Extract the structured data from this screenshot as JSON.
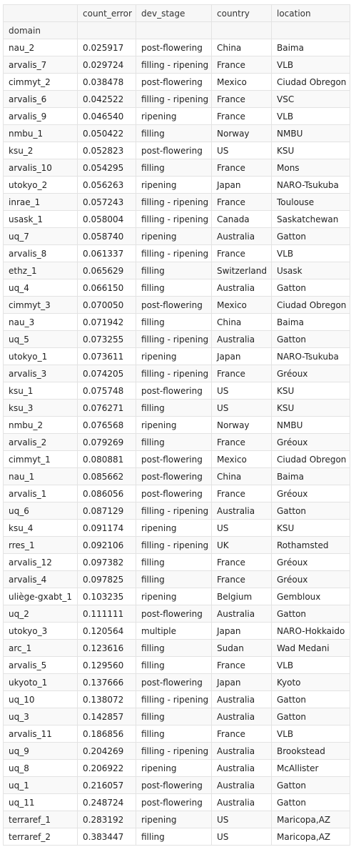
{
  "table": {
    "columns": [
      "",
      "count_error",
      "dev_stage",
      "country",
      "location"
    ],
    "index_name": "domain",
    "rows": [
      [
        "nau_2",
        "0.025917",
        "post-flowering",
        "China",
        "Baima"
      ],
      [
        "arvalis_7",
        "0.029724",
        "filling - ripening",
        "France",
        "VLB"
      ],
      [
        "cimmyt_2",
        "0.038478",
        "post-flowering",
        "Mexico",
        "Ciudad Obregon"
      ],
      [
        "arvalis_6",
        "0.042522",
        "filling - ripening",
        "France",
        "VSC"
      ],
      [
        "arvalis_9",
        "0.046540",
        "ripening",
        "France",
        "VLB"
      ],
      [
        "nmbu_1",
        "0.050422",
        "filling",
        "Norway",
        "NMBU"
      ],
      [
        "ksu_2",
        "0.052823",
        "post-flowering",
        "US",
        "KSU"
      ],
      [
        "arvalis_10",
        "0.054295",
        "filling",
        "France",
        "Mons"
      ],
      [
        "utokyo_2",
        "0.056263",
        "ripening",
        "Japan",
        "NARO-Tsukuba"
      ],
      [
        "inrae_1",
        "0.057243",
        "filling - ripening",
        "France",
        "Toulouse"
      ],
      [
        "usask_1",
        "0.058004",
        "filling - ripening",
        "Canada",
        "Saskatchewan"
      ],
      [
        "uq_7",
        "0.058740",
        "ripening",
        "Australia",
        "Gatton"
      ],
      [
        "arvalis_8",
        "0.061337",
        "filling - ripening",
        "France",
        "VLB"
      ],
      [
        "ethz_1",
        "0.065629",
        "filling",
        "Switzerland",
        "Usask"
      ],
      [
        "uq_4",
        "0.066150",
        "filling",
        "Australia",
        "Gatton"
      ],
      [
        "cimmyt_3",
        "0.070050",
        "post-flowering",
        "Mexico",
        "Ciudad Obregon"
      ],
      [
        "nau_3",
        "0.071942",
        "filling",
        "China",
        "Baima"
      ],
      [
        "uq_5",
        "0.073255",
        "filling - ripening",
        "Australia",
        "Gatton"
      ],
      [
        "utokyo_1",
        "0.073611",
        "ripening",
        "Japan",
        "NARO-Tsukuba"
      ],
      [
        "arvalis_3",
        "0.074205",
        "filling - ripening",
        "France",
        "Gréoux"
      ],
      [
        "ksu_1",
        "0.075748",
        "post-flowering",
        "US",
        "KSU"
      ],
      [
        "ksu_3",
        "0.076271",
        "filling",
        "US",
        "KSU"
      ],
      [
        "nmbu_2",
        "0.076568",
        "ripening",
        "Norway",
        "NMBU"
      ],
      [
        "arvalis_2",
        "0.079269",
        "filling",
        "France",
        "Gréoux"
      ],
      [
        "cimmyt_1",
        "0.080881",
        "post-flowering",
        "Mexico",
        "Ciudad Obregon"
      ],
      [
        "nau_1",
        "0.085662",
        "post-flowering",
        "China",
        "Baima"
      ],
      [
        "arvalis_1",
        "0.086056",
        "post-flowering",
        "France",
        "Gréoux"
      ],
      [
        "uq_6",
        "0.087129",
        "filling - ripening",
        "Australia",
        "Gatton"
      ],
      [
        "ksu_4",
        "0.091174",
        "ripening",
        "US",
        "KSU"
      ],
      [
        "rres_1",
        "0.092106",
        "filling - ripening",
        "UK",
        "Rothamsted"
      ],
      [
        "arvalis_12",
        "0.097382",
        "filling",
        "France",
        "Gréoux"
      ],
      [
        "arvalis_4",
        "0.097825",
        "filling",
        "France",
        "Gréoux"
      ],
      [
        "uliège-gxabt_1",
        "0.103235",
        "ripening",
        "Belgium",
        "Gembloux"
      ],
      [
        "uq_2",
        "0.111111",
        "post-flowering",
        "Australia",
        "Gatton"
      ],
      [
        "utokyo_3",
        "0.120564",
        "multiple",
        "Japan",
        "NARO-Hokkaido"
      ],
      [
        "arc_1",
        "0.123616",
        "filling",
        "Sudan",
        "Wad Medani"
      ],
      [
        "arvalis_5",
        "0.129560",
        "filling",
        "France",
        "VLB"
      ],
      [
        "ukyoto_1",
        "0.137666",
        "post-flowering",
        "Japan",
        "Kyoto"
      ],
      [
        "uq_10",
        "0.138072",
        "filling - ripening",
        "Australia",
        "Gatton"
      ],
      [
        "uq_3",
        "0.142857",
        "filling",
        "Australia",
        "Gatton"
      ],
      [
        "arvalis_11",
        "0.186856",
        "filling",
        "France",
        "VLB"
      ],
      [
        "uq_9",
        "0.204269",
        "filling - ripening",
        "Australia",
        "Brookstead"
      ],
      [
        "uq_8",
        "0.206922",
        "ripening",
        "Australia",
        "McAllister"
      ],
      [
        "uq_1",
        "0.216057",
        "post-flowering",
        "Australia",
        "Gatton"
      ],
      [
        "uq_11",
        "0.248724",
        "post-flowering",
        "Australia",
        "Gatton"
      ],
      [
        "terraref_1",
        "0.283192",
        "ripening",
        "US",
        "Maricopa,AZ"
      ],
      [
        "terraref_2",
        "0.383447",
        "filling",
        "US",
        "Maricopa,AZ"
      ]
    ]
  }
}
